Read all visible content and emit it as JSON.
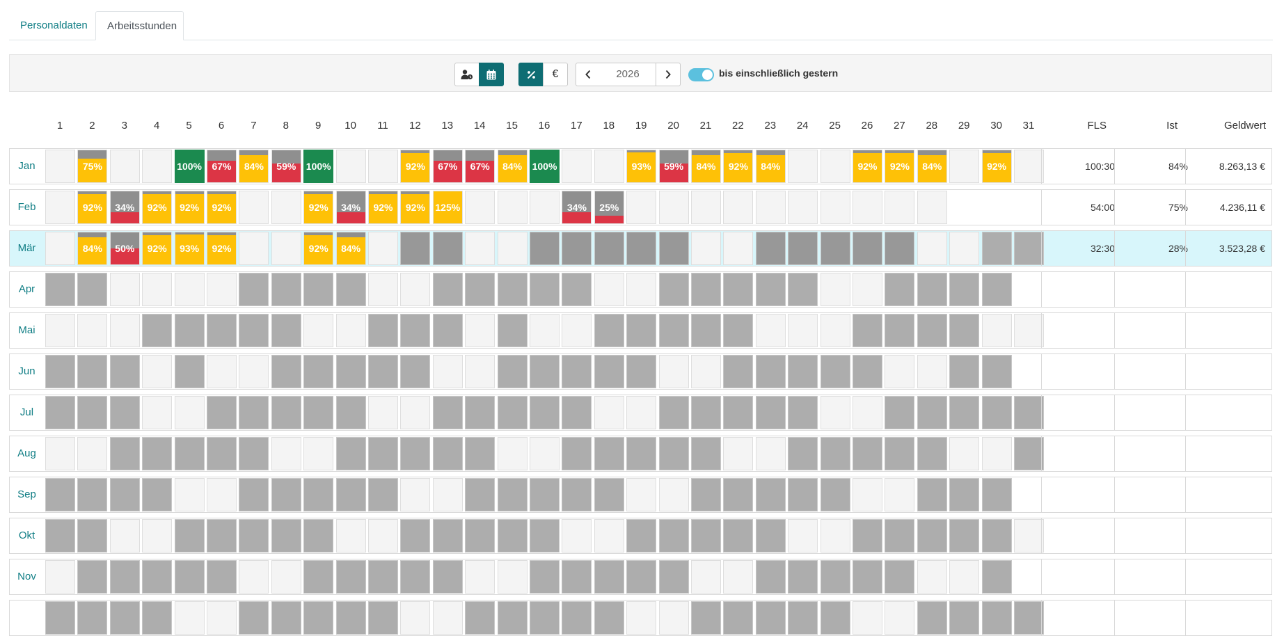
{
  "tabs": [
    {
      "label": "Personaldaten",
      "active": false
    },
    {
      "label": "Arbeitsstunden",
      "active": true
    }
  ],
  "toolbar": {
    "person_icon": "person-clock-icon",
    "calendar_icon": "calendar-icon",
    "percent_icon": "percent-icon",
    "euro_label": "€",
    "prev_icon": "chevron-left-icon",
    "year": "2026",
    "next_icon": "chevron-right-icon",
    "toggle_on": true,
    "toggle_label": "bis einschließlich gestern"
  },
  "colors": {
    "accent": "#0e6d73",
    "link": "#0f7d84",
    "yellow": "#fec107",
    "red": "#dc3545",
    "green": "#1b8a4f",
    "offday": "#adadad",
    "highlight": "#d8f6fb"
  },
  "columns": {
    "days": [
      "1",
      "2",
      "3",
      "4",
      "5",
      "6",
      "7",
      "8",
      "9",
      "10",
      "11",
      "12",
      "13",
      "14",
      "15",
      "16",
      "17",
      "18",
      "19",
      "20",
      "21",
      "22",
      "23",
      "24",
      "25",
      "26",
      "27",
      "28",
      "29",
      "30",
      "31"
    ],
    "fls": "FLS",
    "ist": "Ist",
    "geldwert": "Geldwert"
  },
  "months": [
    {
      "name": "Jan",
      "fls": "100:30",
      "ist": "84%",
      "geld": "8.263,13 €",
      "highlight": false,
      "days": [
        "e",
        "y:75%",
        "e",
        "e",
        "g:100%",
        "r:67%",
        "y:84%",
        "r:59%",
        "g:100%",
        "e",
        "e",
        "y:92%",
        "r:67%",
        "r:67%",
        "y:84%",
        "g:100%",
        "e",
        "e",
        "y:93%",
        "r:59%",
        "y:84%",
        "y:92%",
        "y:84%",
        "e",
        "e",
        "y:92%",
        "y:92%",
        "y:84%",
        "e",
        "y:92%",
        "e"
      ]
    },
    {
      "name": "Feb",
      "fls": "54:00",
      "ist": "75%",
      "geld": "4.236,11 €",
      "highlight": false,
      "days": [
        "e",
        "y:92%",
        "r:34%",
        "y:92%",
        "y:92%",
        "y:92%",
        "e",
        "e",
        "y:92%",
        "r:34%",
        "y:92%",
        "y:92%",
        "y:125%",
        "e",
        "e",
        "e",
        "r:34%",
        "r:25%",
        "e",
        "e",
        "e",
        "e",
        "e",
        "e",
        "e",
        "e",
        "e",
        "e",
        "n",
        "n",
        "n"
      ]
    },
    {
      "name": "Mär",
      "fls": "32:30",
      "ist": "28%",
      "geld": "3.523,28 €",
      "highlight": true,
      "days": [
        "e",
        "y:84%",
        "r:50%",
        "y:92%",
        "y:93%",
        "y:92%",
        "e",
        "e",
        "y:92%",
        "y:84%",
        "e",
        "D",
        "D",
        "e",
        "e",
        "D",
        "D",
        "D",
        "D",
        "D",
        "e",
        "e",
        "D",
        "D",
        "D",
        "D",
        "D",
        "e",
        "e",
        "G",
        "G"
      ]
    },
    {
      "name": "Apr",
      "fls": "",
      "ist": "",
      "geld": "",
      "highlight": false,
      "days": [
        "G",
        "G",
        "e",
        "e",
        "e",
        "e",
        "G",
        "G",
        "G",
        "G",
        "e",
        "e",
        "G",
        "G",
        "G",
        "G",
        "G",
        "e",
        "e",
        "G",
        "G",
        "G",
        "G",
        "G",
        "e",
        "e",
        "G",
        "G",
        "G",
        "G",
        "n"
      ]
    },
    {
      "name": "Mai",
      "fls": "",
      "ist": "",
      "geld": "",
      "highlight": false,
      "days": [
        "e",
        "e",
        "e",
        "G",
        "G",
        "G",
        "G",
        "G",
        "e",
        "e",
        "G",
        "G",
        "G",
        "e",
        "G",
        "e",
        "e",
        "G",
        "G",
        "G",
        "G",
        "G",
        "e",
        "e",
        "e",
        "G",
        "G",
        "G",
        "G",
        "e",
        "e"
      ]
    },
    {
      "name": "Jun",
      "fls": "",
      "ist": "",
      "geld": "",
      "highlight": false,
      "days": [
        "G",
        "G",
        "G",
        "e",
        "G",
        "e",
        "e",
        "G",
        "G",
        "G",
        "G",
        "G",
        "e",
        "e",
        "G",
        "G",
        "G",
        "G",
        "G",
        "e",
        "e",
        "G",
        "G",
        "G",
        "G",
        "G",
        "e",
        "e",
        "G",
        "G",
        "n"
      ]
    },
    {
      "name": "Jul",
      "fls": "",
      "ist": "",
      "geld": "",
      "highlight": false,
      "days": [
        "G",
        "G",
        "G",
        "e",
        "e",
        "G",
        "G",
        "G",
        "G",
        "G",
        "e",
        "e",
        "G",
        "G",
        "G",
        "G",
        "G",
        "e",
        "e",
        "G",
        "G",
        "G",
        "G",
        "G",
        "e",
        "e",
        "G",
        "G",
        "G",
        "G",
        "G"
      ]
    },
    {
      "name": "Aug",
      "fls": "",
      "ist": "",
      "geld": "",
      "highlight": false,
      "days": [
        "e",
        "e",
        "G",
        "G",
        "G",
        "G",
        "G",
        "e",
        "e",
        "G",
        "G",
        "G",
        "G",
        "G",
        "e",
        "e",
        "G",
        "G",
        "G",
        "G",
        "G",
        "e",
        "e",
        "G",
        "G",
        "G",
        "G",
        "G",
        "e",
        "e",
        "G"
      ]
    },
    {
      "name": "Sep",
      "fls": "",
      "ist": "",
      "geld": "",
      "highlight": false,
      "days": [
        "G",
        "G",
        "G",
        "G",
        "e",
        "e",
        "G",
        "G",
        "G",
        "G",
        "G",
        "e",
        "e",
        "G",
        "G",
        "G",
        "G",
        "G",
        "e",
        "e",
        "G",
        "G",
        "G",
        "G",
        "G",
        "e",
        "e",
        "G",
        "G",
        "G",
        "n"
      ]
    },
    {
      "name": "Okt",
      "fls": "",
      "ist": "",
      "geld": "",
      "highlight": false,
      "days": [
        "G",
        "G",
        "e",
        "e",
        "G",
        "G",
        "G",
        "G",
        "G",
        "e",
        "e",
        "G",
        "G",
        "G",
        "G",
        "G",
        "e",
        "e",
        "G",
        "G",
        "G",
        "G",
        "G",
        "e",
        "e",
        "G",
        "G",
        "G",
        "G",
        "G",
        "e"
      ]
    },
    {
      "name": "Nov",
      "fls": "",
      "ist": "",
      "geld": "",
      "highlight": false,
      "days": [
        "e",
        "G",
        "G",
        "G",
        "G",
        "G",
        "e",
        "e",
        "G",
        "G",
        "G",
        "G",
        "G",
        "e",
        "e",
        "G",
        "G",
        "G",
        "G",
        "G",
        "e",
        "e",
        "G",
        "G",
        "G",
        "G",
        "G",
        "e",
        "e",
        "G",
        "n"
      ]
    },
    {
      "name": "",
      "fls": "",
      "ist": "",
      "geld": "",
      "highlight": false,
      "days": [
        "G",
        "G",
        "G",
        "G",
        "e",
        "e",
        "G",
        "G",
        "G",
        "G",
        "G",
        "e",
        "e",
        "G",
        "G",
        "G",
        "G",
        "G",
        "e",
        "e",
        "G",
        "G",
        "G",
        "G",
        "G",
        "e",
        "e",
        "G",
        "G",
        "G",
        "G"
      ]
    }
  ]
}
